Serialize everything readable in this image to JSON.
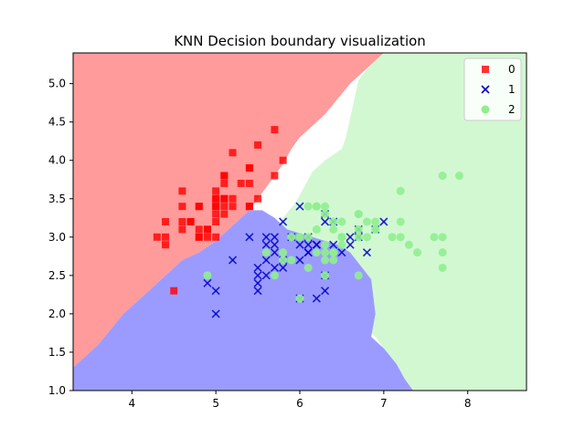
{
  "chart_data": {
    "type": "scatter",
    "title": "KNN Decision boundary visualization",
    "xlabel": "",
    "ylabel": "",
    "xlim": [
      3.3,
      8.7
    ],
    "ylim": [
      1.0,
      5.4
    ],
    "x_ticks": [
      4,
      5,
      6,
      7,
      8
    ],
    "y_ticks": [
      1.0,
      1.5,
      2.0,
      2.5,
      3.0,
      3.5,
      4.0,
      4.5,
      5.0
    ],
    "grid": false,
    "legend_position": "top-right",
    "region_colors": {
      "0": "#ff9b9b",
      "1": "#9b9bff",
      "2": "#d2f8d2"
    },
    "regions": [
      {
        "class": "0",
        "points": [
          [
            3.3,
            5.4
          ],
          [
            8.0,
            5.4
          ],
          [
            7.0,
            5.4
          ],
          [
            6.9,
            5.3
          ],
          [
            6.6,
            5.0
          ],
          [
            6.3,
            4.6
          ],
          [
            6.0,
            4.3
          ],
          [
            5.9,
            4.15
          ],
          [
            5.8,
            3.95
          ],
          [
            5.6,
            3.65
          ],
          [
            5.4,
            3.35
          ],
          [
            5.2,
            3.15
          ],
          [
            5.0,
            2.95
          ],
          [
            4.8,
            2.8
          ],
          [
            4.6,
            2.7
          ],
          [
            4.4,
            2.5
          ],
          [
            4.2,
            2.3
          ],
          [
            3.9,
            2.0
          ],
          [
            3.6,
            1.6
          ],
          [
            3.3,
            1.3
          ]
        ]
      },
      {
        "class": "2",
        "points": [
          [
            7.0,
            5.4
          ],
          [
            8.7,
            5.4
          ],
          [
            8.7,
            1.0
          ],
          [
            7.35,
            1.0
          ],
          [
            7.25,
            1.15
          ],
          [
            7.15,
            1.35
          ],
          [
            7.0,
            1.55
          ],
          [
            6.9,
            1.7
          ],
          [
            6.8,
            1.8
          ],
          [
            6.6,
            1.95
          ],
          [
            6.4,
            2.05
          ],
          [
            6.2,
            2.1
          ],
          [
            6.0,
            2.2
          ],
          [
            5.9,
            2.3
          ],
          [
            5.85,
            2.5
          ],
          [
            5.8,
            2.65
          ],
          [
            5.75,
            2.85
          ],
          [
            5.7,
            3.05
          ],
          [
            5.8,
            3.25
          ],
          [
            5.95,
            3.45
          ],
          [
            6.05,
            3.65
          ],
          [
            6.15,
            3.85
          ],
          [
            6.3,
            4.0
          ],
          [
            6.5,
            4.15
          ],
          [
            6.55,
            4.3
          ],
          [
            6.6,
            4.55
          ],
          [
            6.65,
            4.8
          ],
          [
            6.7,
            5.05
          ],
          [
            6.85,
            5.25
          ]
        ]
      },
      {
        "class": "1",
        "points": [
          [
            3.3,
            1.3
          ],
          [
            3.6,
            1.6
          ],
          [
            3.9,
            2.0
          ],
          [
            4.2,
            2.3
          ],
          [
            4.4,
            2.5
          ],
          [
            4.6,
            2.7
          ],
          [
            4.8,
            2.8
          ],
          [
            5.0,
            2.95
          ],
          [
            5.2,
            3.15
          ],
          [
            5.4,
            3.35
          ],
          [
            5.55,
            3.35
          ],
          [
            5.7,
            3.25
          ],
          [
            5.85,
            3.1
          ],
          [
            6.0,
            3.05
          ],
          [
            6.15,
            3.0
          ],
          [
            6.3,
            2.95
          ],
          [
            6.45,
            2.9
          ],
          [
            6.6,
            2.8
          ],
          [
            6.85,
            2.45
          ],
          [
            6.9,
            2.0
          ],
          [
            6.85,
            1.7
          ],
          [
            7.0,
            1.55
          ],
          [
            7.15,
            1.35
          ],
          [
            7.25,
            1.15
          ],
          [
            7.35,
            1.0
          ],
          [
            3.3,
            1.0
          ]
        ]
      }
    ],
    "series": [
      {
        "name": "0",
        "marker": "square",
        "color": "#ff0000",
        "points": [
          [
            5.1,
            3.5
          ],
          [
            4.9,
            3.0
          ],
          [
            4.7,
            3.2
          ],
          [
            4.6,
            3.1
          ],
          [
            5.0,
            3.6
          ],
          [
            5.4,
            3.9
          ],
          [
            4.6,
            3.4
          ],
          [
            5.0,
            3.4
          ],
          [
            4.4,
            2.9
          ],
          [
            4.9,
            3.1
          ],
          [
            5.4,
            3.7
          ],
          [
            4.8,
            3.4
          ],
          [
            4.8,
            3.0
          ],
          [
            4.3,
            3.0
          ],
          [
            5.8,
            4.0
          ],
          [
            5.7,
            4.4
          ],
          [
            5.4,
            3.9
          ],
          [
            5.1,
            3.5
          ],
          [
            5.7,
            3.8
          ],
          [
            5.1,
            3.8
          ],
          [
            5.4,
            3.4
          ],
          [
            5.1,
            3.7
          ],
          [
            4.6,
            3.6
          ],
          [
            5.1,
            3.3
          ],
          [
            4.8,
            3.4
          ],
          [
            5.0,
            3.0
          ],
          [
            5.0,
            3.4
          ],
          [
            5.2,
            3.5
          ],
          [
            5.2,
            3.4
          ],
          [
            4.7,
            3.2
          ],
          [
            4.8,
            3.1
          ],
          [
            5.4,
            3.4
          ],
          [
            5.2,
            4.1
          ],
          [
            5.5,
            4.2
          ],
          [
            4.9,
            3.1
          ],
          [
            5.0,
            3.2
          ],
          [
            5.5,
            3.5
          ],
          [
            4.4,
            3.0
          ],
          [
            5.1,
            3.4
          ],
          [
            5.0,
            3.5
          ],
          [
            4.5,
            2.3
          ],
          [
            4.4,
            3.2
          ],
          [
            5.0,
            3.5
          ],
          [
            5.1,
            3.8
          ],
          [
            4.8,
            3.0
          ],
          [
            4.6,
            3.2
          ],
          [
            5.3,
            3.7
          ],
          [
            5.0,
            3.3
          ]
        ]
      },
      {
        "name": "1",
        "marker": "x",
        "color": "#0000cc",
        "points": [
          [
            6.0,
            3.4
          ],
          [
            5.8,
            3.2
          ],
          [
            5.6,
            3.0
          ],
          [
            5.5,
            2.5
          ],
          [
            5.5,
            2.4
          ],
          [
            5.5,
            2.3
          ],
          [
            5.5,
            2.6
          ],
          [
            4.9,
            2.4
          ],
          [
            5.0,
            2.3
          ],
          [
            5.0,
            2.0
          ],
          [
            5.2,
            2.7
          ],
          [
            5.4,
            3.0
          ],
          [
            5.6,
            2.7
          ],
          [
            5.7,
            2.6
          ],
          [
            5.8,
            2.7
          ],
          [
            5.8,
            2.6
          ],
          [
            5.7,
            2.8
          ],
          [
            5.7,
            2.9
          ],
          [
            5.7,
            3.0
          ],
          [
            5.6,
            2.9
          ],
          [
            6.0,
            2.9
          ],
          [
            6.1,
            2.8
          ],
          [
            6.1,
            2.9
          ],
          [
            6.1,
            3.0
          ],
          [
            6.2,
            2.9
          ],
          [
            6.2,
            2.2
          ],
          [
            6.3,
            2.3
          ],
          [
            6.3,
            2.5
          ],
          [
            6.4,
            2.9
          ],
          [
            6.5,
            2.8
          ],
          [
            6.6,
            2.9
          ],
          [
            6.6,
            3.0
          ],
          [
            6.7,
            3.0
          ],
          [
            6.7,
            3.1
          ],
          [
            6.8,
            2.8
          ],
          [
            6.9,
            3.1
          ],
          [
            7.0,
            3.2
          ],
          [
            6.3,
            3.2
          ],
          [
            6.3,
            3.3
          ],
          [
            5.9,
            3.0
          ],
          [
            6.1,
            2.8
          ],
          [
            6.0,
            2.7
          ],
          [
            6.0,
            2.2
          ],
          [
            5.6,
            2.5
          ],
          [
            6.2,
            2.9
          ],
          [
            6.4,
            3.2
          ]
        ]
      },
      {
        "name": "2",
        "marker": "circle",
        "color": "#90ee90",
        "points": [
          [
            6.3,
            3.3
          ],
          [
            7.1,
            3.0
          ],
          [
            6.3,
            2.9
          ],
          [
            6.5,
            3.0
          ],
          [
            7.6,
            3.0
          ],
          [
            4.9,
            2.5
          ],
          [
            7.3,
            2.9
          ],
          [
            6.7,
            2.5
          ],
          [
            7.2,
            3.6
          ],
          [
            6.5,
            3.2
          ],
          [
            6.4,
            2.7
          ],
          [
            6.8,
            3.0
          ],
          [
            5.7,
            2.5
          ],
          [
            5.8,
            2.8
          ],
          [
            6.4,
            3.2
          ],
          [
            6.5,
            3.0
          ],
          [
            7.7,
            3.8
          ],
          [
            7.7,
            2.6
          ],
          [
            6.0,
            2.2
          ],
          [
            6.9,
            3.2
          ],
          [
            5.6,
            2.8
          ],
          [
            7.7,
            2.8
          ],
          [
            6.3,
            2.7
          ],
          [
            6.7,
            3.3
          ],
          [
            7.2,
            3.2
          ],
          [
            6.2,
            2.8
          ],
          [
            6.1,
            3.0
          ],
          [
            6.4,
            2.8
          ],
          [
            7.2,
            3.0
          ],
          [
            7.4,
            2.8
          ],
          [
            7.9,
            3.8
          ],
          [
            6.4,
            2.8
          ],
          [
            6.3,
            2.8
          ],
          [
            6.1,
            2.6
          ],
          [
            7.7,
            3.0
          ],
          [
            6.3,
            3.4
          ],
          [
            6.4,
            3.1
          ],
          [
            6.0,
            3.0
          ],
          [
            6.9,
            3.1
          ],
          [
            6.7,
            3.1
          ],
          [
            6.9,
            3.1
          ],
          [
            5.8,
            2.7
          ],
          [
            6.8,
            3.2
          ],
          [
            6.7,
            3.3
          ],
          [
            6.7,
            3.0
          ],
          [
            6.3,
            2.5
          ],
          [
            6.5,
            3.0
          ],
          [
            6.2,
            3.4
          ],
          [
            5.9,
            3.0
          ],
          [
            6.2,
            3.4
          ],
          [
            6.1,
            3.4
          ],
          [
            6.5,
            2.9
          ],
          [
            6.2,
            3.1
          ],
          [
            5.9,
            2.7
          ]
        ]
      }
    ]
  }
}
